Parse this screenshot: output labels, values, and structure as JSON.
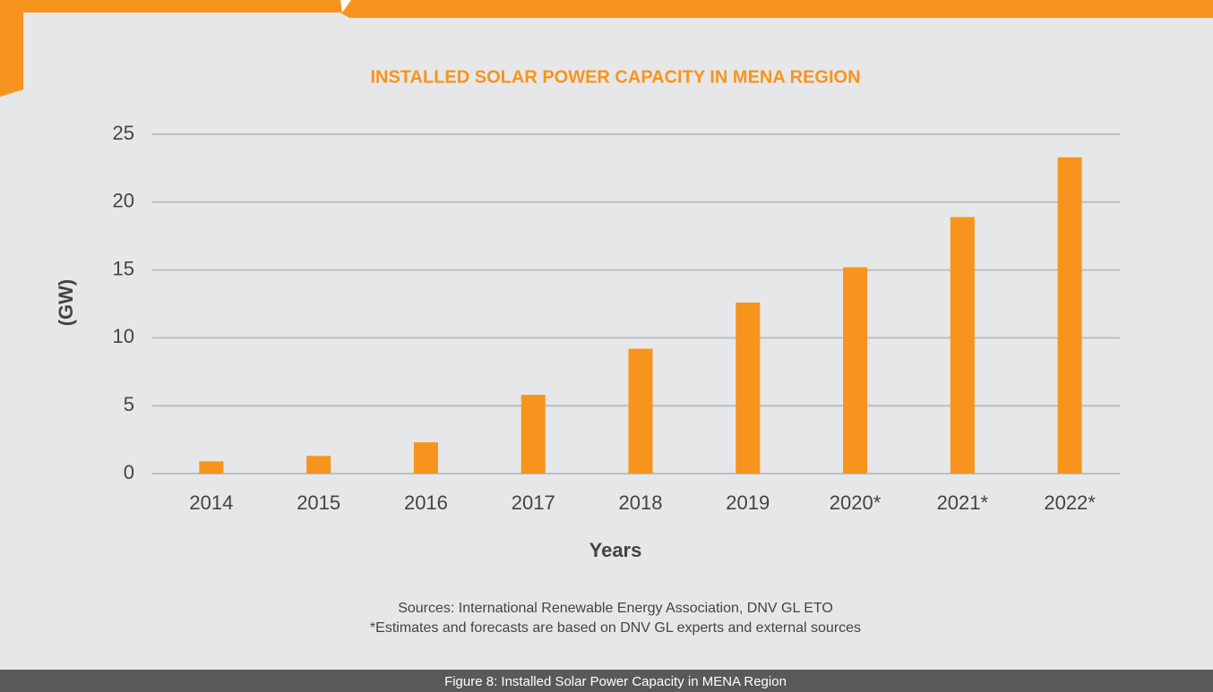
{
  "chart_data": {
    "type": "bar",
    "title": "INSTALLED SOLAR POWER CAPACITY IN MENA REGION",
    "ylabel": "(GW)",
    "xlabel": "Years",
    "categories": [
      "2014",
      "2015",
      "2016",
      "2017",
      "2018",
      "2019",
      "2020*",
      "2021*",
      "2022*"
    ],
    "values": [
      0.9,
      1.3,
      2.3,
      5.8,
      9.2,
      12.6,
      15.2,
      18.9,
      23.3
    ],
    "color": "#f7941d",
    "ylim": [
      0,
      25
    ],
    "yticks": [
      0,
      5,
      10,
      15,
      20,
      25
    ],
    "grid": true,
    "sources": [
      "Sources: International Renewable Energy Association, DNV GL ETO",
      "*Estimates and forecasts are based on DNV GL experts and external sources"
    ],
    "caption": "Figure 8: Installed Solar Power Capacity in MENA Region"
  }
}
